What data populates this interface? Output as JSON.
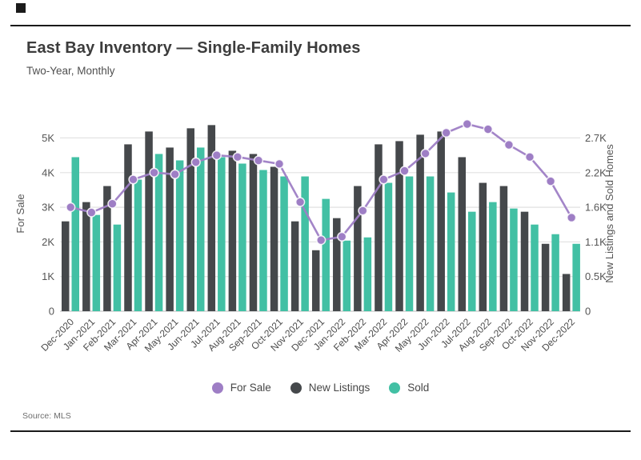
{
  "header": {
    "title": "East Bay Inventory — Single-Family Homes",
    "subtitle": "Two-Year, Monthly"
  },
  "footer": {
    "source": "Source: MLS"
  },
  "legend": [
    {
      "label": "For Sale",
      "color": "#9e7ec5"
    },
    {
      "label": "New Listings",
      "color": "#45484b"
    },
    {
      "label": "Sold",
      "color": "#42c0a4"
    }
  ],
  "colors": {
    "for_sale_line": "#9e7ec5",
    "new_listings_bar": "#45484b",
    "sold_bar": "#42c0a4",
    "gridline": "#e4e4e4",
    "baseline": "#c8c8c8",
    "tick_text": "#555555"
  },
  "chart_data": {
    "type": "bar",
    "title": "East Bay Inventory — Single-Family Homes",
    "subtitle": "Two-Year, Monthly",
    "grid": true,
    "legend_position": "bottom",
    "categories": [
      "Dec-2020",
      "Jan-2021",
      "Feb-2021",
      "Mar-2021",
      "Apr-2021",
      "May-2021",
      "Jun-2021",
      "Jul-2021",
      "Aug-2021",
      "Sep-2021",
      "Oct-2021",
      "Nov-2021",
      "Dec-2021",
      "Jan-2022",
      "Feb-2022",
      "Mar-2022",
      "Apr-2022",
      "May-2022",
      "Jun-2022",
      "Jul-2022",
      "Aug-2022",
      "Sep-2022",
      "Oct-2022",
      "Nov-2022",
      "Dec-2022"
    ],
    "series": [
      {
        "name": "For Sale",
        "type": "line",
        "axis": "left",
        "color": "#9e7ec5",
        "values": [
          3000,
          2850,
          3100,
          3800,
          4000,
          3950,
          4300,
          4500,
          4450,
          4350,
          4250,
          3150,
          2050,
          2150,
          2900,
          3800,
          4050,
          4550,
          5150,
          5400,
          5250,
          4800,
          4450,
          3750,
          2700
        ]
      },
      {
        "name": "New Listings",
        "type": "bar",
        "axis": "right",
        "color": "#45484b",
        "values": [
          1400,
          1700,
          1950,
          2600,
          2800,
          2550,
          2850,
          2900,
          2500,
          2450,
          2250,
          1400,
          950,
          1450,
          1950,
          2600,
          2650,
          2750,
          2800,
          2400,
          2000,
          1950,
          1550,
          1050,
          580
        ]
      },
      {
        "name": "Sold",
        "type": "bar",
        "axis": "right",
        "color": "#42c0a4",
        "values": [
          2400,
          1500,
          1350,
          2050,
          2450,
          2350,
          2550,
          2400,
          2300,
          2200,
          2100,
          2100,
          1750,
          1100,
          1150,
          2000,
          2100,
          2100,
          1850,
          1550,
          1700,
          1600,
          1350,
          1200,
          1050
        ]
      }
    ],
    "left_axis": {
      "label": "For Sale",
      "ticks": [
        "0",
        "1K",
        "2K",
        "3K",
        "4K",
        "5K"
      ],
      "tick_values": [
        0,
        1000,
        2000,
        3000,
        4000,
        5000
      ],
      "range": [
        0,
        5000
      ]
    },
    "right_axis": {
      "label": "New Listings and Sold Homes",
      "ticks": [
        "0",
        "0.5K",
        "1.1K",
        "1.6K",
        "2.2K",
        "2.7K"
      ],
      "tick_values": [
        0,
        540,
        1080,
        1620,
        2160,
        2700
      ],
      "range": [
        0,
        2700
      ]
    }
  }
}
